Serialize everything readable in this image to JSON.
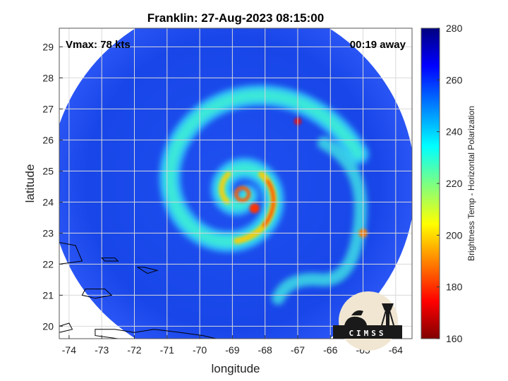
{
  "chart_data": {
    "type": "heatmap",
    "title": "Franklin: 27-Aug-2023 08:15:00",
    "xlabel": "longitude",
    "ylabel": "latitude",
    "xlim": [
      -74.3,
      -63.5
    ],
    "ylim": [
      19.6,
      29.6
    ],
    "x_ticks": [
      -74,
      -73,
      -72,
      -71,
      -70,
      -69,
      -68,
      -67,
      -66,
      -65,
      -64
    ],
    "y_ticks": [
      29,
      28,
      27,
      26,
      25,
      24,
      23,
      22,
      21,
      20
    ],
    "grid": true,
    "annotations": {
      "vmax": "Vmax: 78 kts",
      "time_offset": "00:19 away"
    },
    "colorbar": {
      "label": "Brightness Temp - Horizontal Polarization",
      "range": [
        160,
        280
      ],
      "ticks": [
        280,
        260,
        240,
        220,
        200,
        180,
        160
      ],
      "colormap": "jet"
    },
    "storm_center": {
      "lon": -68.8,
      "lat": 24.3
    },
    "swath": {
      "center_lon": -69.0,
      "center_lat": 24.6,
      "radius_deg": 5.6
    },
    "logo_text": "CIMSS"
  }
}
